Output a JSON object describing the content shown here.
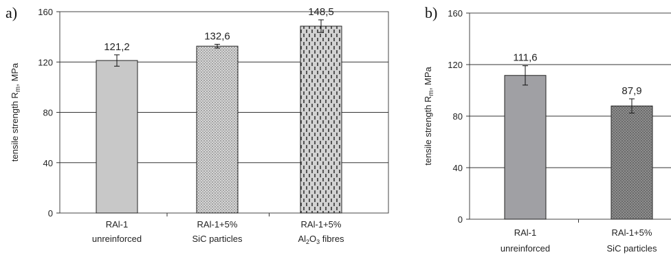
{
  "chart_data": [
    {
      "type": "bar",
      "panel": "a)",
      "ylabel_main": "tensile strength R",
      "ylabel_sub": "m",
      "ylabel_tail": ", MPa",
      "ylim": [
        0,
        160
      ],
      "yticks": [
        "0",
        "40",
        "80",
        "120",
        "160"
      ],
      "ytick_values": [
        0,
        40,
        80,
        120,
        160
      ],
      "grid": true,
      "categories": [
        {
          "line1": "RAl-1",
          "line2": "unreinforced"
        },
        {
          "line1": "RAl-1+5%",
          "line2": "SiC particles"
        },
        {
          "line1": "RAl-1+5%",
          "line2a": "Al",
          "line2sub1": "2",
          "line2b": "O",
          "line2sub2": "3",
          "line2c": " fibres"
        }
      ],
      "values": [
        121.2,
        132.6,
        148.5
      ],
      "value_labels": [
        "121,2",
        "132,6",
        "148,5"
      ],
      "errors": [
        4.5,
        1.5,
        5
      ],
      "fills": [
        "#c8c8c8",
        "dots-light",
        "dashes"
      ]
    },
    {
      "type": "bar",
      "panel": "b)",
      "ylabel_main": "tensile strength R",
      "ylabel_sub": "m",
      "ylabel_tail": ", MPa",
      "ylim": [
        0,
        160
      ],
      "yticks": [
        "0",
        "40",
        "80",
        "120",
        "160"
      ],
      "ytick_values": [
        0,
        40,
        80,
        120,
        160
      ],
      "grid": true,
      "categories": [
        {
          "line1": "RAl-1",
          "line2": "unreinforced"
        },
        {
          "line1": "RAl-1+5%",
          "line2": "SiC particles"
        }
      ],
      "values": [
        111.6,
        87.9
      ],
      "value_labels": [
        "111,6",
        "87,9"
      ],
      "errors": [
        7.5,
        5.5
      ],
      "fills": [
        "#a0a0a4",
        "dots-dark"
      ]
    }
  ]
}
